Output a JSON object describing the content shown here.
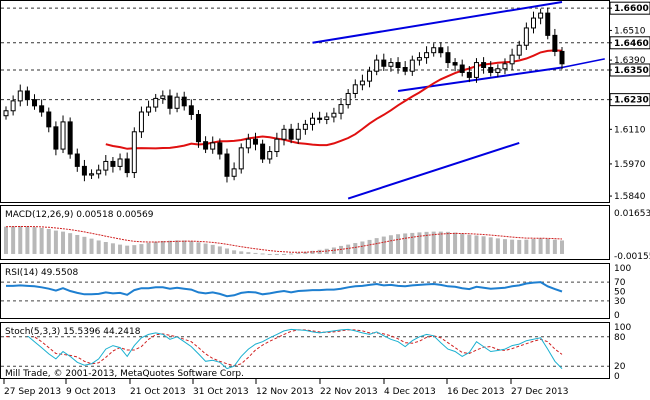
{
  "chart_data": [
    {
      "type": "candlestick",
      "panel": "price",
      "y_ticks": [
        "1.6600",
        "1.6510",
        "1.6460",
        "1.6390",
        "1.6350",
        "1.6230",
        "1.6110",
        "1.5970",
        "1.5840"
      ],
      "highlighted_levels": [
        "1.6600",
        "1.6460",
        "1.6350",
        "1.6230"
      ],
      "ylim": [
        1.582,
        1.6625
      ],
      "closes": [
        1.6185,
        1.6225,
        1.6265,
        1.623,
        1.6205,
        1.618,
        1.612,
        1.603,
        1.614,
        1.601,
        1.596,
        1.5925,
        1.593,
        1.5945,
        1.598,
        1.596,
        1.599,
        1.5935,
        1.61,
        1.618,
        1.62,
        1.6235,
        1.6245,
        1.6195,
        1.624,
        1.6205,
        1.617,
        1.606,
        1.603,
        1.6055,
        1.601,
        1.592,
        1.595,
        1.6035,
        1.607,
        1.605,
        1.599,
        1.602,
        1.607,
        1.611,
        1.607,
        1.611,
        1.613,
        1.6155,
        1.615,
        1.616,
        1.6175,
        1.621,
        1.6255,
        1.629,
        1.6305,
        1.6345,
        1.639,
        1.6365,
        1.638,
        1.636,
        1.6345,
        1.639,
        1.64,
        1.642,
        1.644,
        1.642,
        1.638,
        1.637,
        1.634,
        1.632,
        1.638,
        1.636,
        1.634,
        1.6355,
        1.6375,
        1.641,
        1.645,
        1.652,
        1.656,
        1.658,
        1.649,
        1.6425,
        1.6375
      ],
      "trend_lines": [
        "channel-upper",
        "channel-lower",
        "channel-outer"
      ],
      "moving_average_color": "#e01010",
      "bullish_color": "#ffffff",
      "bearish_color": "#000000"
    },
    {
      "type": "histogram",
      "panel": "macd",
      "label": "MACD(12,26,9) 0.00518 0.00569",
      "y_ticks": [
        "0.01653",
        "-0.00155"
      ],
      "ylim": [
        -0.00155,
        0.01653
      ],
      "values": [
        0.0105,
        0.0106,
        0.0107,
        0.0106,
        0.0103,
        0.01,
        0.0096,
        0.009,
        0.0086,
        0.008,
        0.0073,
        0.0066,
        0.0059,
        0.0052,
        0.0046,
        0.0041,
        0.0036,
        0.0032,
        0.0034,
        0.0038,
        0.0043,
        0.0047,
        0.005,
        0.0051,
        0.0052,
        0.0052,
        0.005,
        0.0045,
        0.004,
        0.0035,
        0.0029,
        0.0021,
        0.0014,
        0.001,
        0.0007,
        0.0004,
        0.0002,
        0.0,
        -0.0001,
        0.0,
        0.0002,
        0.0005,
        0.0008,
        0.0012,
        0.0016,
        0.002,
        0.0025,
        0.0031,
        0.0036,
        0.0042,
        0.0048,
        0.0054,
        0.0061,
        0.0067,
        0.0072,
        0.0076,
        0.0079,
        0.0081,
        0.0083,
        0.0085,
        0.0086,
        0.0086,
        0.0085,
        0.0082,
        0.0078,
        0.0074,
        0.0071,
        0.0068,
        0.0064,
        0.006,
        0.0057,
        0.0055,
        0.0054,
        0.0055,
        0.0058,
        0.006,
        0.0058,
        0.0055,
        0.0052
      ]
    },
    {
      "type": "line",
      "panel": "rsi",
      "label": "RSI(14) 49.5508",
      "y_ticks": [
        "100",
        "70",
        "50",
        "30",
        "0"
      ],
      "ylim": [
        0,
        100
      ],
      "levels": [
        70,
        30
      ],
      "line_color": "#1e7fd0",
      "values": [
        62,
        62,
        63,
        62,
        61,
        59,
        56,
        52,
        57,
        51,
        47,
        44,
        44,
        45,
        48,
        46,
        47,
        43,
        53,
        57,
        57,
        59,
        59,
        56,
        58,
        56,
        54,
        48,
        46,
        48,
        45,
        40,
        42,
        47,
        49,
        48,
        44,
        46,
        49,
        51,
        48,
        51,
        52,
        53,
        53,
        54,
        54,
        56,
        59,
        61,
        62,
        64,
        66,
        63,
        64,
        62,
        61,
        63,
        64,
        65,
        66,
        64,
        61,
        60,
        57,
        55,
        60,
        58,
        56,
        57,
        58,
        61,
        63,
        67,
        69,
        70,
        61,
        55,
        50
      ]
    },
    {
      "type": "line",
      "panel": "stochastic",
      "label": "Stoch(5,3,3) 15.5396 44.2418",
      "y_ticks": [
        "100",
        "80",
        "20",
        "0"
      ],
      "ylim": [
        0,
        100
      ],
      "levels": [
        80,
        20
      ],
      "main_color": "#1ab0d0",
      "signal_color": "#d02020",
      "main": [
        85,
        88,
        90,
        82,
        70,
        58,
        45,
        35,
        50,
        40,
        28,
        22,
        25,
        35,
        55,
        62,
        58,
        40,
        62,
        78,
        85,
        88,
        85,
        75,
        80,
        70,
        60,
        45,
        30,
        32,
        28,
        15,
        20,
        40,
        55,
        65,
        70,
        78,
        85,
        92,
        95,
        94,
        93,
        90,
        88,
        90,
        92,
        94,
        95,
        92,
        88,
        85,
        90,
        82,
        75,
        70,
        60,
        72,
        80,
        85,
        82,
        68,
        55,
        50,
        40,
        48,
        70,
        60,
        50,
        52,
        55,
        62,
        65,
        72,
        75,
        78,
        55,
        30,
        15
      ],
      "signal": [
        80,
        84,
        87,
        86,
        80,
        70,
        58,
        46,
        44,
        42,
        39,
        30,
        25,
        27,
        38,
        51,
        58,
        53,
        53,
        60,
        75,
        84,
        86,
        83,
        80,
        75,
        70,
        58,
        45,
        36,
        30,
        25,
        21,
        25,
        38,
        53,
        63,
        71,
        78,
        85,
        91,
        94,
        94,
        92,
        90,
        89,
        90,
        92,
        94,
        94,
        92,
        88,
        88,
        86,
        82,
        76,
        68,
        67,
        71,
        79,
        82,
        78,
        68,
        58,
        48,
        46,
        53,
        59,
        60,
        54,
        52,
        56,
        61,
        66,
        71,
        75,
        70,
        55,
        44
      ]
    }
  ],
  "x_labels": [
    "27 Sep 2013",
    "9 Oct 2013",
    "21 Oct 2013",
    "31 Oct 2013",
    "12 Nov 2013",
    "22 Nov 2013",
    "4 Dec 2013",
    "16 Dec 2013",
    "27 Dec 2013"
  ],
  "copyright": "Mill Trade, © 2001-2013, MetaQuotes Software Corp."
}
